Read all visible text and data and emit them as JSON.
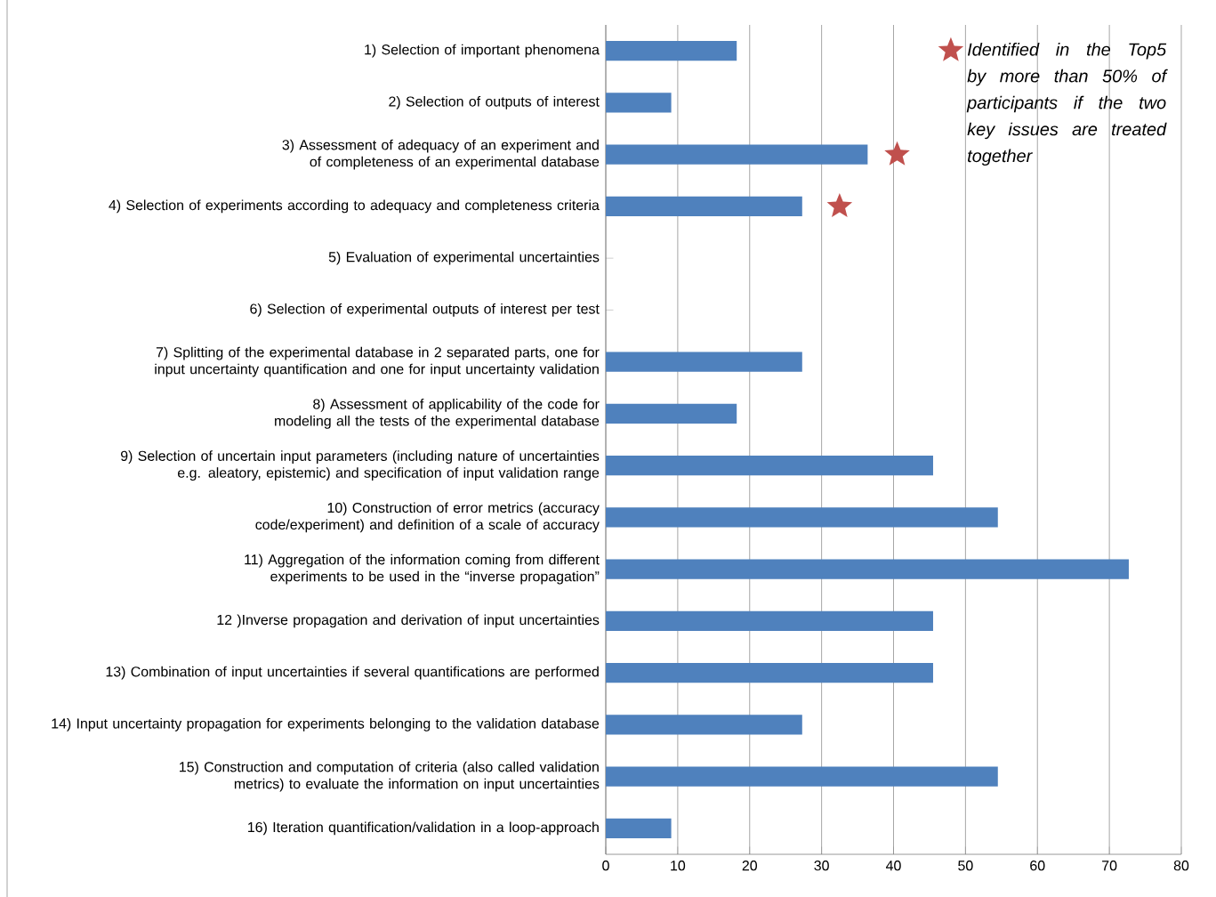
{
  "chart_data": {
    "type": "bar",
    "orientation": "horizontal",
    "categories": [
      "1) Selection of important phenomena",
      "2) Selection of outputs of interest",
      "3) Assessment of adequacy of an experiment and of completeness of an experimental database",
      "4) Selection of experiments according to adequacy and completeness criteria",
      "5) Evaluation of experimental uncertainties",
      "6) Selection of experimental outputs of interest per test",
      "7) Splitting of the experimental database in 2 separated parts, one for input uncertainty quantification and one for input uncertainty validation",
      "8) Assessment of applicability of the code for modeling all the tests of the experimental database",
      "9) Selection of uncertain input parameters (including nature of uncertainties e.g. aleatory, epistemic) and specification of input validation range",
      "10) Construction of error metrics (accuracy code/experiment) and definition of a scale of accuracy",
      "11) Aggregation of the information coming from different experiments to be used in the “inverse propagation”",
      "12 )Inverse propagation and derivation of input uncertainties",
      "13) Combination of input uncertainties if several quantifications are performed",
      "14) Input uncertainty propagation for experiments belonging to the validation database",
      "15) Construction and computation of criteria (also called validation metrics) to evaluate the information on input uncertainties",
      "16) Iteration quantification/validation in a loop-approach"
    ],
    "series": [
      {
        "color": "#4f81bd",
        "values": [
          18.2,
          9.1,
          36.4,
          27.3,
          0,
          0,
          27.3,
          18.2,
          45.5,
          54.5,
          72.7,
          45.5,
          45.5,
          27.3,
          54.5,
          9.1
        ]
      },
      {
        "type": "scatter",
        "name": "Identified in the Top5 by more than 50% of participants if the two key issues are treated together",
        "color": "#c0504d",
        "values": [
          null,
          null,
          40.5,
          32.5,
          null,
          null,
          null,
          null,
          null,
          null,
          null,
          null,
          null,
          null,
          null,
          null
        ]
      }
    ],
    "marker": "star",
    "xlim": [
      0,
      80
    ],
    "xticks": [
      0,
      10,
      20,
      30,
      40,
      50,
      60,
      70,
      80
    ],
    "grid": "x",
    "legend": "top right"
  }
}
